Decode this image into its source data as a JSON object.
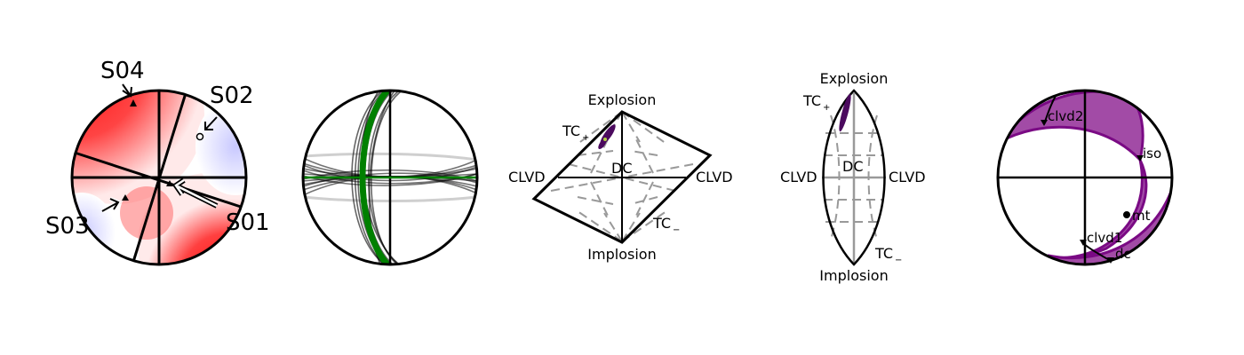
{
  "panel1": {
    "stations": [
      "S04",
      "S02",
      "S03",
      "S01"
    ],
    "colors": {
      "positive": "#ff0000",
      "negative": "#c8c8ff"
    }
  },
  "panel2": {
    "colors": {
      "best": "#008000",
      "ensemble": "#000000"
    }
  },
  "panel3": {
    "labels": {
      "top": "Explosion",
      "bottom": "Implosion",
      "left": "CLVD",
      "right": "CLVD",
      "center": "DC",
      "tcplus": "TC",
      "tcminus": "TC",
      "plus": "+",
      "minus": "−"
    },
    "colors": {
      "samples": "#4b0a5e"
    }
  },
  "panel4": {
    "labels": {
      "top": "Explosion",
      "bottom": "Implosion",
      "left": "CLVD",
      "right": "CLVD",
      "center": "DC",
      "tcplus": "TC",
      "tcminus": "TC",
      "plus": "+",
      "minus": "−"
    },
    "colors": {
      "samples": "#4b0a5e"
    }
  },
  "panel5": {
    "labels": {
      "clvd2": "clvd2",
      "iso": "iso",
      "mt": "mt",
      "clvd1": "clvd1",
      "dc": "dc"
    },
    "colors": {
      "fill": "#a24ba6",
      "edge": "#7a0a84"
    }
  }
}
